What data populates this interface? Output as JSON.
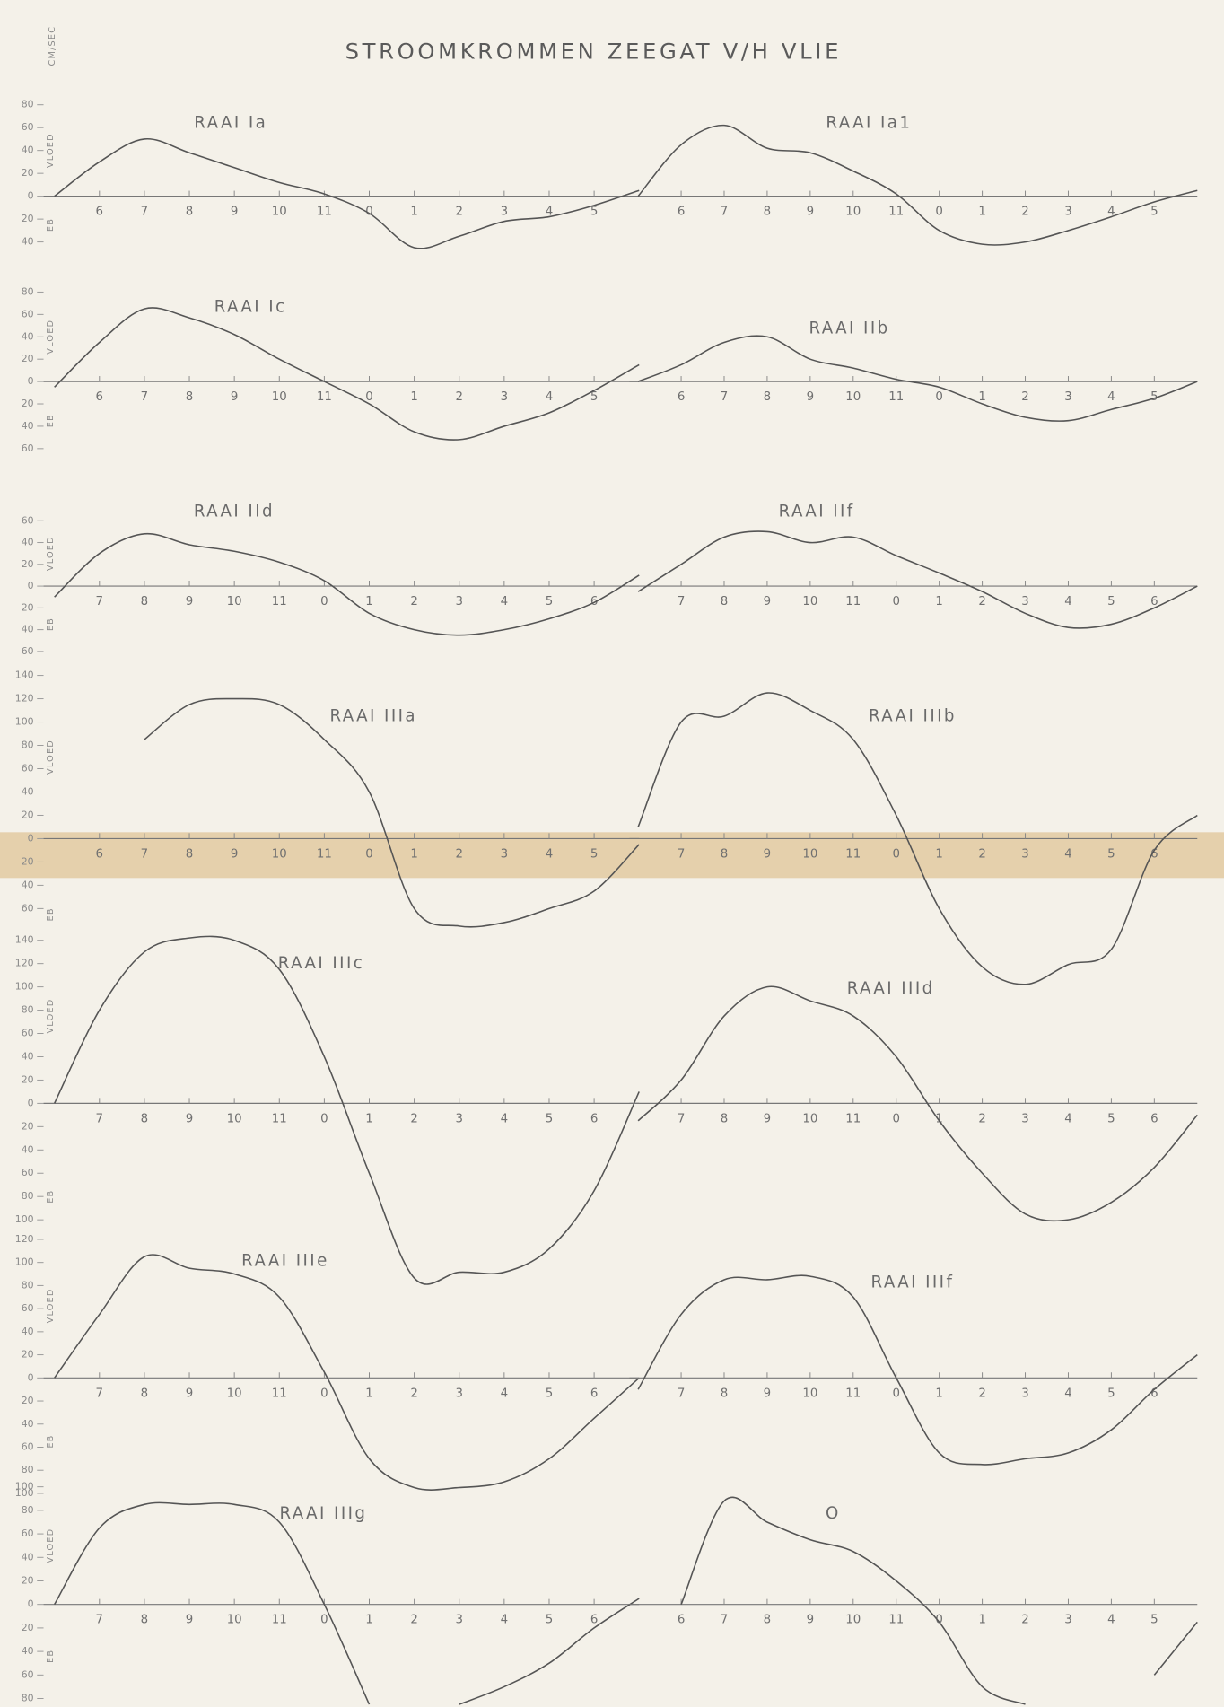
{
  "header": {
    "title": "STROOMKROMMEN ZEEGAT V/H VLIE",
    "unit": "CM/SEC"
  },
  "chart_data": [
    {
      "type": "line",
      "title": "RAAI Ia",
      "color": "#555555",
      "ylabel_up": "VLOED",
      "ylabel_down": "EB",
      "categories": [
        null,
        "6",
        "7",
        "8",
        "9",
        "10",
        "11",
        "0",
        "1",
        "2",
        "3",
        "4",
        "5",
        null
      ],
      "values": [
        0,
        30,
        50,
        38,
        25,
        12,
        2,
        -15,
        -45,
        -35,
        -22,
        -18,
        -8,
        5
      ],
      "ylim": [
        -50,
        80
      ],
      "yticks": [
        80,
        60,
        40,
        20,
        0,
        {
          "value": -20,
          "label": "20"
        },
        {
          "value": -40,
          "label": "40"
        }
      ]
    },
    {
      "type": "line",
      "title": "RAAI Ia1",
      "color": "#555555",
      "categories": [
        null,
        "6",
        "7",
        "8",
        "9",
        "10",
        "11",
        "0",
        "1",
        "2",
        "3",
        "4",
        "5",
        null
      ],
      "values": [
        0,
        45,
        62,
        42,
        38,
        22,
        2,
        -30,
        -42,
        -40,
        -30,
        -18,
        -5,
        5
      ],
      "ylim": [
        -50,
        80
      ]
    },
    {
      "type": "line",
      "title": "RAAI Ic",
      "color": "#555555",
      "ylabel_up": "VLOED",
      "ylabel_down": "EB",
      "categories": [
        null,
        "6",
        "7",
        "8",
        "9",
        "10",
        "11",
        "0",
        "1",
        "2",
        "3",
        "4",
        "5",
        null
      ],
      "values": [
        -5,
        35,
        65,
        57,
        42,
        20,
        0,
        -20,
        -45,
        -52,
        -40,
        -28,
        -8,
        15
      ],
      "ylim": [
        -70,
        80
      ],
      "yticks": [
        80,
        60,
        40,
        20,
        0,
        {
          "value": -20,
          "label": "20"
        },
        {
          "value": -40,
          "label": "40"
        },
        {
          "value": -60,
          "label": "60"
        }
      ]
    },
    {
      "type": "line",
      "title": "RAAI IIb",
      "color": "#555555",
      "categories": [
        null,
        "6",
        "7",
        "8",
        "9",
        "10",
        "11",
        "0",
        "1",
        "2",
        "3",
        "4",
        "5",
        null
      ],
      "values": [
        0,
        15,
        35,
        40,
        20,
        12,
        2,
        -5,
        -20,
        -32,
        -35,
        -25,
        -15,
        0
      ],
      "ylim": [
        -70,
        80
      ]
    },
    {
      "type": "line",
      "title": "RAAI IId",
      "color": "#555555",
      "ylabel_up": "VLOED",
      "ylabel_down": "EB",
      "categories": [
        null,
        "7",
        "8",
        "9",
        "10",
        "11",
        "0",
        "1",
        "2",
        "3",
        "4",
        "5",
        "6",
        null
      ],
      "values": [
        -10,
        30,
        48,
        38,
        32,
        22,
        5,
        -25,
        -40,
        -45,
        -40,
        -30,
        -15,
        10
      ],
      "ylim": [
        -70,
        60
      ],
      "yticks": [
        60,
        40,
        20,
        0,
        {
          "value": -20,
          "label": "20"
        },
        {
          "value": -40,
          "label": "40"
        },
        {
          "value": -60,
          "label": "60"
        }
      ]
    },
    {
      "type": "line",
      "title": "RAAI IIf",
      "color": "#555555",
      "categories": [
        null,
        "7",
        "8",
        "9",
        "10",
        "11",
        "0",
        "1",
        "2",
        "3",
        "4",
        "5",
        "6",
        null
      ],
      "values": [
        -5,
        20,
        45,
        50,
        40,
        45,
        28,
        12,
        -5,
        -25,
        -38,
        -35,
        -20,
        0
      ],
      "ylim": [
        -70,
        60
      ]
    },
    {
      "type": "line",
      "title": "RAAI IIIa",
      "color": "#555555",
      "ylabel_up": "VLOED",
      "ylabel_down": "EB",
      "categories": [
        null,
        "6",
        "7",
        "8",
        "9",
        "10",
        "11",
        "0",
        "1",
        "2",
        "3",
        "4",
        "5",
        null
      ],
      "values": [
        null,
        null,
        85,
        115,
        120,
        115,
        85,
        40,
        -60,
        -75,
        -72,
        -60,
        -45,
        -5
      ],
      "ylim": [
        -130,
        140
      ],
      "yticks": [
        140,
        120,
        100,
        80,
        60,
        40,
        20,
        0,
        {
          "value": -20,
          "label": "20"
        },
        {
          "value": -40,
          "label": "40"
        },
        {
          "value": -60,
          "label": "60"
        }
      ]
    },
    {
      "type": "line",
      "title": "RAAI IIIb",
      "color": "#555555",
      "categories": [
        null,
        "7",
        "8",
        "9",
        "10",
        "11",
        "0",
        "1",
        "2",
        "3",
        "4",
        "5",
        "6",
        null
      ],
      "values": [
        10,
        100,
        105,
        125,
        110,
        85,
        20,
        -60,
        -110,
        -125,
        -108,
        -95,
        -10,
        20
      ],
      "ylim": [
        -130,
        140
      ]
    },
    {
      "type": "line",
      "title": "RAAI IIIc",
      "color": "#555555",
      "ylabel_up": "VLOED",
      "ylabel_down": "EB",
      "categories": [
        null,
        "7",
        "8",
        "9",
        "10",
        "11",
        "0",
        "1",
        "2",
        "3",
        "4",
        "5",
        "6",
        null
      ],
      "values": [
        0,
        80,
        130,
        142,
        140,
        115,
        40,
        -60,
        -150,
        -145,
        -145,
        -125,
        -75,
        10
      ],
      "ylim": [
        -160,
        150
      ],
      "yticks": [
        140,
        120,
        100,
        80,
        60,
        40,
        20,
        0,
        {
          "value": -20,
          "label": "20"
        },
        {
          "value": -40,
          "label": "40"
        },
        {
          "value": -60,
          "label": "60"
        },
        {
          "value": -80,
          "label": "80"
        },
        {
          "value": -100,
          "label": "100"
        }
      ]
    },
    {
      "type": "line",
      "title": "RAAI IIId",
      "color": "#555555",
      "categories": [
        null,
        "7",
        "8",
        "9",
        "10",
        "11",
        "0",
        "1",
        "2",
        "3",
        "4",
        "5",
        "6",
        null
      ],
      "values": [
        -15,
        20,
        75,
        100,
        88,
        75,
        40,
        -15,
        -60,
        -95,
        -100,
        -85,
        -55,
        -10
      ],
      "ylim": [
        -160,
        150
      ]
    },
    {
      "type": "line",
      "title": "RAAI IIIe",
      "color": "#555555",
      "ylabel_up": "VLOED",
      "ylabel_down": "EB",
      "categories": [
        null,
        "7",
        "8",
        "9",
        "10",
        "11",
        "0",
        "1",
        "2",
        "3",
        "4",
        "5",
        "6",
        null
      ],
      "values": [
        0,
        55,
        105,
        95,
        90,
        70,
        5,
        -70,
        -95,
        -95,
        -90,
        -70,
        -35,
        0
      ],
      "ylim": [
        -110,
        125
      ],
      "yticks": [
        120,
        100,
        80,
        60,
        40,
        20,
        0,
        {
          "value": -20,
          "label": "20"
        },
        {
          "value": -40,
          "label": "40"
        },
        {
          "value": -60,
          "label": "60"
        },
        {
          "value": -80,
          "label": "80"
        },
        {
          "value": -100,
          "label": "100"
        }
      ]
    },
    {
      "type": "line",
      "title": "RAAI IIIf",
      "color": "#555555",
      "categories": [
        null,
        "7",
        "8",
        "9",
        "10",
        "11",
        "0",
        "1",
        "2",
        "3",
        "4",
        "5",
        "6",
        null
      ],
      "values": [
        -10,
        55,
        85,
        85,
        88,
        70,
        0,
        -65,
        -75,
        -70,
        -65,
        -45,
        -10,
        20
      ],
      "ylim": [
        -110,
        125
      ]
    },
    {
      "type": "line",
      "title": "RAAI IIIg",
      "color": "#555555",
      "ylabel_up": "VLOED",
      "ylabel_down": "EB",
      "categories": [
        null,
        "7",
        "8",
        "9",
        "10",
        "11",
        "0",
        "1",
        "2",
        "3",
        "4",
        "5",
        "6",
        null
      ],
      "values": [
        0,
        65,
        85,
        85,
        85,
        70,
        0,
        -85,
        null,
        -85,
        -70,
        -50,
        -20,
        5
      ],
      "ylim": [
        -88,
        100
      ],
      "yticks": [
        100,
        80,
        60,
        40,
        20,
        0,
        {
          "value": -20,
          "label": "20"
        },
        {
          "value": -40,
          "label": "40"
        },
        {
          "value": -60,
          "label": "60"
        },
        {
          "value": -80,
          "label": "80"
        }
      ]
    },
    {
      "type": "line",
      "title": "O",
      "color": "#555555",
      "categories": [
        null,
        "6",
        "7",
        "8",
        "9",
        "10",
        "11",
        "0",
        "1",
        "2",
        "3",
        "4",
        "5",
        null
      ],
      "values": [
        null,
        0,
        88,
        70,
        55,
        45,
        20,
        -15,
        -70,
        -85,
        null,
        null,
        -60,
        -15
      ],
      "ylim": [
        -88,
        100
      ]
    }
  ]
}
